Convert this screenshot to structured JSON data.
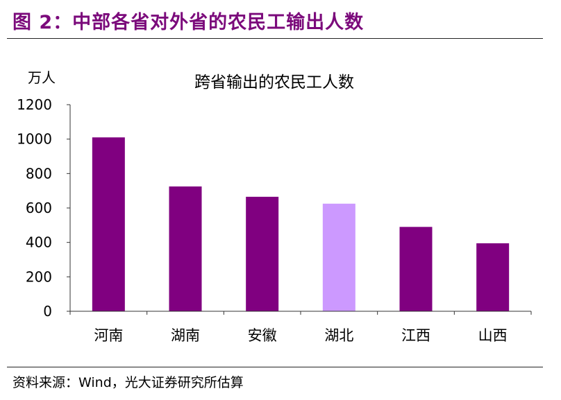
{
  "figure": {
    "title": "图 2：中部各省对外省的农民工输出人数",
    "source": "资料来源：Wind，光大证券研究所估算"
  },
  "colors": {
    "title": "#7b0a7b",
    "bar_primary": "#800080",
    "bar_highlight": "#cc99ff",
    "axis": "#333333"
  },
  "chart_data": {
    "type": "bar",
    "title": "跨省输出的农民工人数",
    "ylabel": "万人",
    "xlabel": "",
    "categories": [
      "河南",
      "湖南",
      "安徽",
      "湖北",
      "江西",
      "山西"
    ],
    "values": [
      1010,
      725,
      665,
      625,
      490,
      395
    ],
    "highlight": [
      "湖北"
    ],
    "ylim": [
      0,
      1200
    ],
    "yticks": [
      0,
      200,
      400,
      600,
      800,
      1000,
      1200
    ],
    "grid": false,
    "legend": "none"
  }
}
